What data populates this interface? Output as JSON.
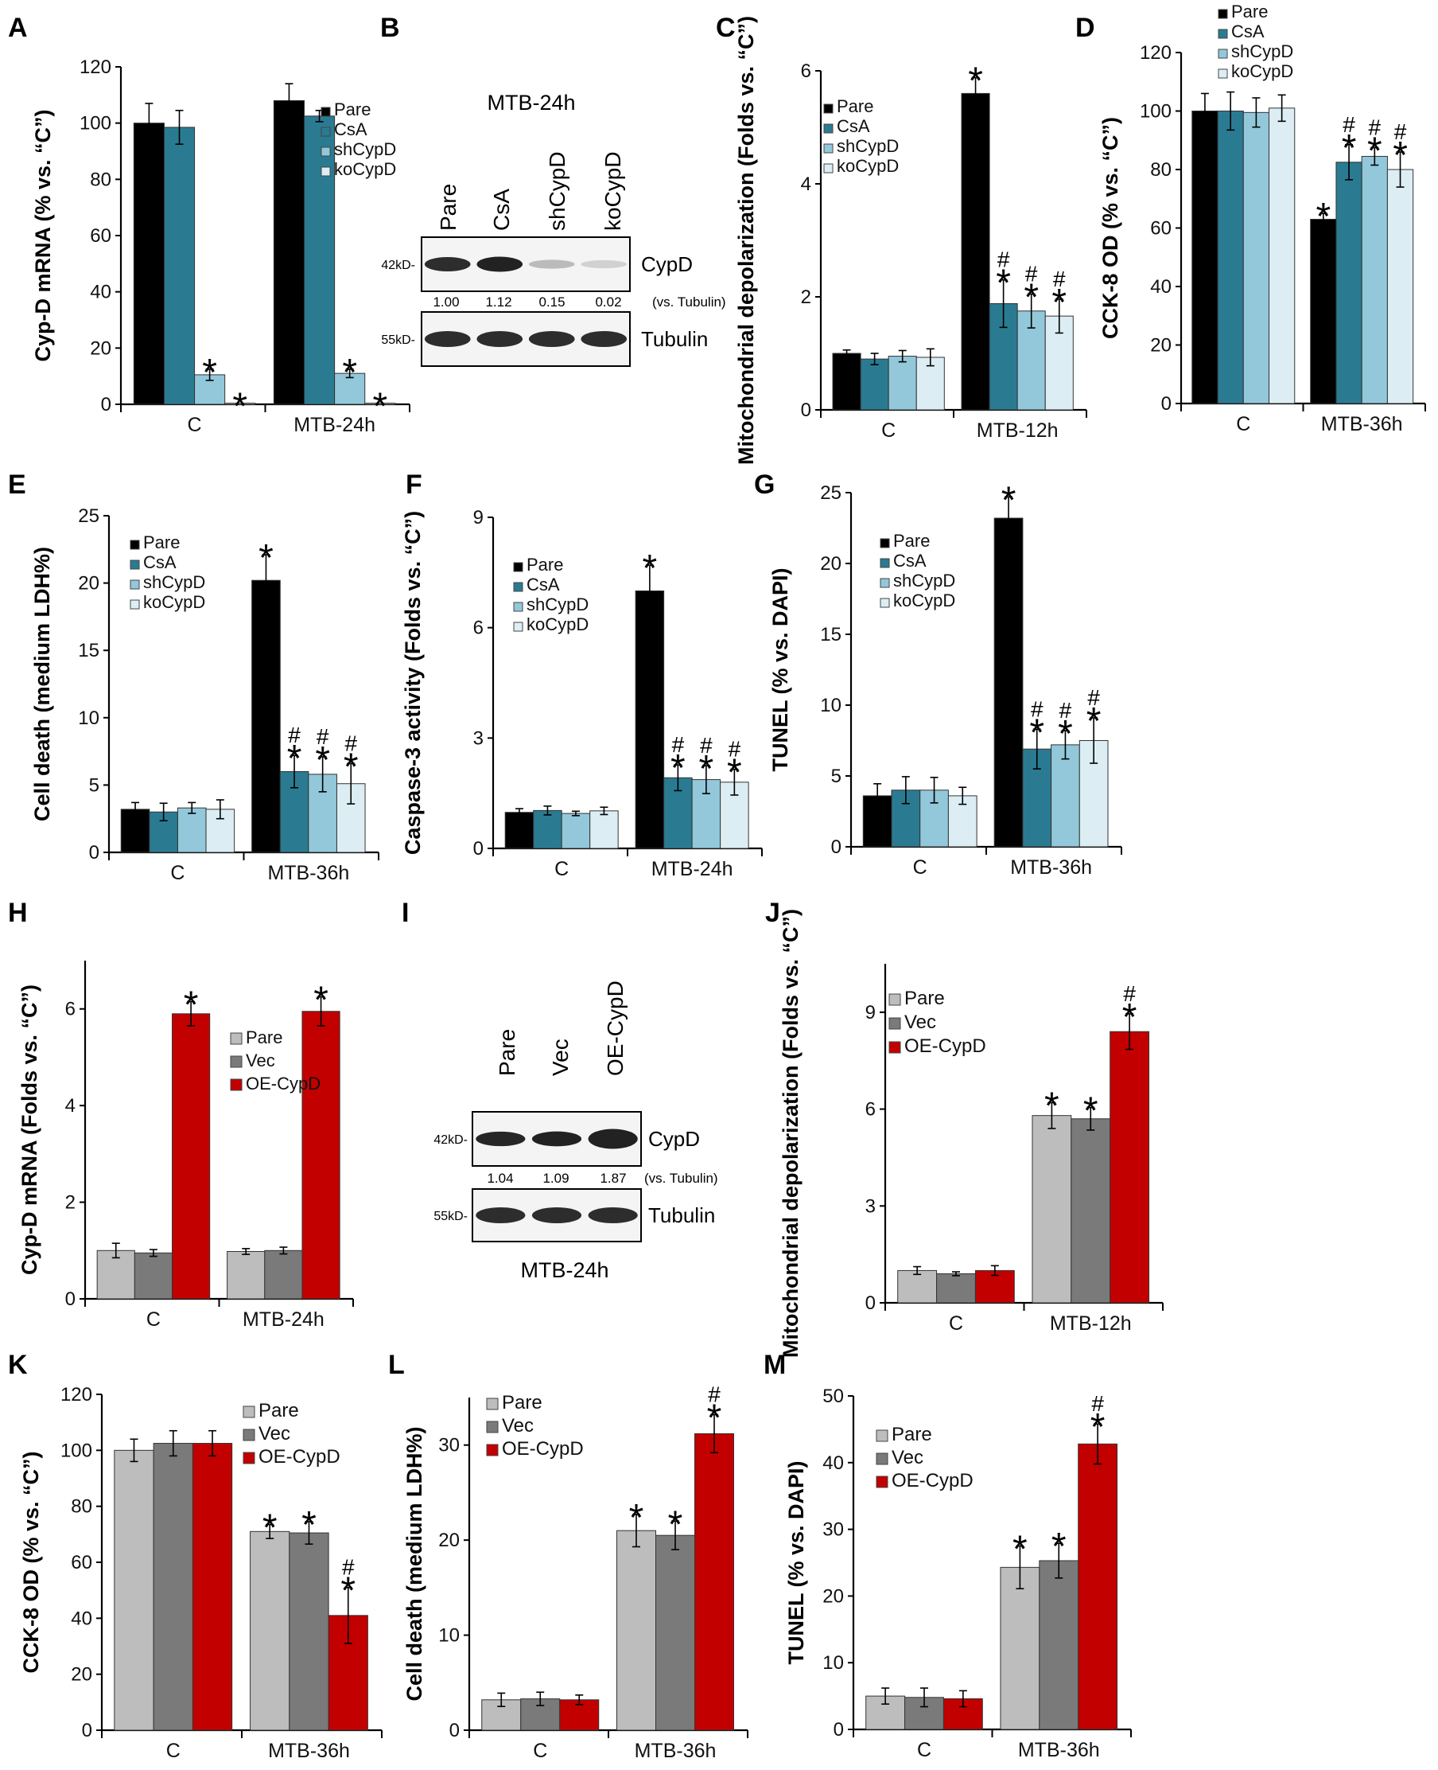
{
  "colors": {
    "pare_dark": "#000000",
    "csa": "#2a7b91",
    "shcypd": "#92c8da",
    "kocypd": "#dceef4",
    "pare_light": "#bdbdbd",
    "vec": "#7a7a7a",
    "oe_cypd": "#c20000"
  },
  "panels": [
    {
      "letter": "A"
    },
    {
      "letter": "B"
    },
    {
      "letter": "C"
    },
    {
      "letter": "D"
    },
    {
      "letter": "E"
    },
    {
      "letter": "F"
    },
    {
      "letter": "G"
    },
    {
      "letter": "H"
    },
    {
      "letter": "I"
    },
    {
      "letter": "J"
    },
    {
      "letter": "K"
    },
    {
      "letter": "L"
    },
    {
      "letter": "M"
    }
  ],
  "blots": [
    {
      "panel": "B",
      "title": "MTB-24h",
      "title_position": "top",
      "lanes": [
        "Pare",
        "CsA",
        "shCypD",
        "koCypD"
      ],
      "bands": [
        {
          "marker": "42kD-",
          "label": "CypD",
          "intensities": [
            1.0,
            1.12,
            0.15,
            0.02
          ]
        },
        {
          "marker": "55kD-",
          "label": "Tubulin",
          "intensities": [
            1.0,
            1.0,
            1.0,
            1.0
          ]
        }
      ],
      "quant": [
        "1.00",
        "1.12",
        "0.15",
        "0.02"
      ],
      "quant_suffix": "(vs. Tubulin)"
    },
    {
      "panel": "I",
      "title": "MTB-24h",
      "title_position": "bottom",
      "lanes": [
        "Pare",
        "Vec",
        "OE-CypD"
      ],
      "bands": [
        {
          "marker": "42kD-",
          "label": "CypD",
          "intensities": [
            1.04,
            1.09,
            1.87
          ]
        },
        {
          "marker": "55kD-",
          "label": "Tubulin",
          "intensities": [
            1.0,
            1.0,
            1.0
          ]
        }
      ],
      "quant": [
        "1.04",
        "1.09",
        "1.87"
      ],
      "quant_suffix": "(vs. Tubulin)"
    }
  ],
  "chart_data": [
    {
      "panel": "A",
      "type": "bar",
      "ylabel": "Cyp-D mRNA (% vs. “C”)",
      "ylim": [
        0,
        120
      ],
      "yticks": [
        0,
        20,
        40,
        60,
        80,
        100,
        120
      ],
      "categories": [
        "C",
        "MTB-24h"
      ],
      "legend_position": "top-right",
      "series": [
        {
          "name": "Pare",
          "color_key": "pare_dark",
          "values": [
            100,
            108
          ],
          "errors": [
            7,
            6
          ],
          "marks": [
            "",
            ""
          ]
        },
        {
          "name": "CsA",
          "color_key": "csa",
          "values": [
            98.5,
            102.5
          ],
          "errors": [
            6,
            2
          ],
          "marks": [
            "",
            ""
          ]
        },
        {
          "name": "shCypD",
          "color_key": "shcypd",
          "values": [
            10.5,
            11
          ],
          "errors": [
            2,
            1.5
          ],
          "marks": [
            "*",
            "*"
          ]
        },
        {
          "name": "koCypD",
          "color_key": "kocypd",
          "values": [
            0.4,
            0.4
          ],
          "errors": [
            0,
            0
          ],
          "marks": [
            "*",
            "*"
          ]
        }
      ]
    },
    {
      "panel": "C",
      "type": "bar",
      "ylabel": "Mitochondrial depolarization (Folds vs. “C”)",
      "ylim": [
        0,
        6
      ],
      "yticks": [
        0,
        2,
        4,
        6
      ],
      "categories": [
        "C",
        "MTB-12h"
      ],
      "legend_position": "top-left",
      "series": [
        {
          "name": "Pare",
          "color_key": "pare_dark",
          "values": [
            1.0,
            5.6
          ],
          "errors": [
            0.06,
            0.28
          ],
          "marks": [
            "",
            "*"
          ]
        },
        {
          "name": "CsA",
          "color_key": "csa",
          "values": [
            0.9,
            1.88
          ],
          "errors": [
            0.1,
            0.42
          ],
          "marks": [
            "",
            "*#"
          ]
        },
        {
          "name": "shCypD",
          "color_key": "shcypd",
          "values": [
            0.95,
            1.75
          ],
          "errors": [
            0.1,
            0.3
          ],
          "marks": [
            "",
            "*#"
          ]
        },
        {
          "name": "koCypD",
          "color_key": "kocypd",
          "values": [
            0.93,
            1.66
          ],
          "errors": [
            0.15,
            0.3
          ],
          "marks": [
            "",
            "*#"
          ]
        }
      ]
    },
    {
      "panel": "D",
      "type": "bar",
      "ylabel": "CCK-8 OD (% vs. “C”)",
      "ylim": [
        0,
        120
      ],
      "yticks": [
        0,
        20,
        40,
        60,
        80,
        100,
        120
      ],
      "categories": [
        "C",
        "MTB-36h"
      ],
      "legend_position": "top-left",
      "series": [
        {
          "name": "Pare",
          "color_key": "pare_dark",
          "values": [
            100,
            63
          ],
          "errors": [
            6,
            2
          ],
          "marks": [
            "",
            "*"
          ]
        },
        {
          "name": "CsA",
          "color_key": "csa",
          "values": [
            100,
            82.5
          ],
          "errors": [
            6.5,
            6
          ],
          "marks": [
            "",
            "*#"
          ]
        },
        {
          "name": "shCypD",
          "color_key": "shcypd",
          "values": [
            99.5,
            84.5
          ],
          "errors": [
            5,
            3
          ],
          "marks": [
            "",
            "*#"
          ]
        },
        {
          "name": "koCypD",
          "color_key": "kocypd",
          "values": [
            101,
            80
          ],
          "errors": [
            4.5,
            6
          ],
          "marks": [
            "",
            "*#"
          ]
        }
      ]
    },
    {
      "panel": "E",
      "type": "bar",
      "ylabel": "Cell death (medium LDH%)",
      "ylim": [
        0,
        25
      ],
      "yticks": [
        0,
        5,
        10,
        15,
        20,
        25
      ],
      "categories": [
        "C",
        "MTB-36h"
      ],
      "legend_position": "top-left",
      "series": [
        {
          "name": "Pare",
          "color_key": "pare_dark",
          "values": [
            3.2,
            20.2
          ],
          "errors": [
            0.5,
            1.9
          ],
          "marks": [
            "",
            "*"
          ]
        },
        {
          "name": "CsA",
          "color_key": "csa",
          "values": [
            3.0,
            6.0
          ],
          "errors": [
            0.65,
            1.2
          ],
          "marks": [
            "",
            "*#"
          ]
        },
        {
          "name": "shCypD",
          "color_key": "shcypd",
          "values": [
            3.3,
            5.8
          ],
          "errors": [
            0.4,
            1.3
          ],
          "marks": [
            "",
            "*#"
          ]
        },
        {
          "name": "koCypD",
          "color_key": "kocypd",
          "values": [
            3.2,
            5.1
          ],
          "errors": [
            0.7,
            1.5
          ],
          "marks": [
            "",
            "*#"
          ]
        }
      ]
    },
    {
      "panel": "F",
      "type": "bar",
      "ylabel": "Caspase-3 activity (Folds vs. “C”)",
      "ylim": [
        0,
        9
      ],
      "yticks": [
        0,
        3,
        6,
        9
      ],
      "categories": [
        "C",
        "MTB-24h"
      ],
      "legend_position": "top-left",
      "series": [
        {
          "name": "Pare",
          "color_key": "pare_dark",
          "values": [
            0.98,
            7.0
          ],
          "errors": [
            0.1,
            0.7
          ],
          "marks": [
            "",
            "*"
          ]
        },
        {
          "name": "CsA",
          "color_key": "csa",
          "values": [
            1.03,
            1.92
          ],
          "errors": [
            0.12,
            0.35
          ],
          "marks": [
            "",
            "*#"
          ]
        },
        {
          "name": "shCypD",
          "color_key": "shcypd",
          "values": [
            0.95,
            1.87
          ],
          "errors": [
            0.06,
            0.38
          ],
          "marks": [
            "",
            "*#"
          ]
        },
        {
          "name": "koCypD",
          "color_key": "kocypd",
          "values": [
            1.02,
            1.8
          ],
          "errors": [
            0.1,
            0.35
          ],
          "marks": [
            "",
            "*#"
          ]
        }
      ]
    },
    {
      "panel": "G",
      "type": "bar",
      "ylabel": "TUNEL (% vs. DAPI)",
      "ylim": [
        0,
        25
      ],
      "yticks": [
        0,
        5,
        10,
        15,
        20,
        25
      ],
      "categories": [
        "C",
        "MTB-36h"
      ],
      "legend_position": "top-left",
      "series": [
        {
          "name": "Pare",
          "color_key": "pare_dark",
          "values": [
            3.6,
            23.2
          ],
          "errors": [
            0.85,
            1.5
          ],
          "marks": [
            "",
            "*"
          ]
        },
        {
          "name": "CsA",
          "color_key": "csa",
          "values": [
            4.0,
            6.9
          ],
          "errors": [
            0.95,
            1.4
          ],
          "marks": [
            "",
            "*#"
          ]
        },
        {
          "name": "shCypD",
          "color_key": "shcypd",
          "values": [
            4.0,
            7.2
          ],
          "errors": [
            0.9,
            1.0
          ],
          "marks": [
            "",
            "*#"
          ]
        },
        {
          "name": "koCypD",
          "color_key": "kocypd",
          "values": [
            3.6,
            7.5
          ],
          "errors": [
            0.6,
            1.6
          ],
          "marks": [
            "",
            "*#"
          ]
        }
      ]
    },
    {
      "panel": "H",
      "type": "bar",
      "ylabel": "Cyp-D mRNA (Folds vs. “C”)",
      "ylim": [
        0,
        7
      ],
      "yticks": [
        0,
        2,
        4,
        6
      ],
      "categories": [
        "C",
        "MTB-24h"
      ],
      "legend_position": "center-right",
      "series": [
        {
          "name": "Pare",
          "color_key": "pare_light",
          "values": [
            1.0,
            0.98
          ],
          "errors": [
            0.15,
            0.06
          ],
          "marks": [
            "",
            ""
          ]
        },
        {
          "name": "Vec",
          "color_key": "vec",
          "values": [
            0.95,
            1.0
          ],
          "errors": [
            0.07,
            0.07
          ],
          "marks": [
            "",
            ""
          ]
        },
        {
          "name": "OE-CypD",
          "color_key": "oe_cypd",
          "values": [
            5.9,
            5.95
          ],
          "errors": [
            0.25,
            0.3
          ],
          "marks": [
            "*",
            "*"
          ]
        }
      ]
    },
    {
      "panel": "J",
      "type": "bar",
      "ylabel": "Mitochondrial depolarization (Folds vs. “C”)",
      "ylim": [
        0,
        10.5
      ],
      "yticks": [
        0,
        3,
        6,
        9
      ],
      "categories": [
        "C",
        "MTB-12h"
      ],
      "legend_position": "top-left",
      "series": [
        {
          "name": "Pare",
          "color_key": "pare_light",
          "values": [
            1.0,
            5.8
          ],
          "errors": [
            0.12,
            0.4
          ],
          "marks": [
            "",
            "*"
          ]
        },
        {
          "name": "Vec",
          "color_key": "vec",
          "values": [
            0.9,
            5.7
          ],
          "errors": [
            0.06,
            0.35
          ],
          "marks": [
            "",
            "*"
          ]
        },
        {
          "name": "OE-CypD",
          "color_key": "oe_cypd",
          "values": [
            1.0,
            8.4
          ],
          "errors": [
            0.15,
            0.55
          ],
          "marks": [
            "",
            "*#"
          ]
        }
      ]
    },
    {
      "panel": "K",
      "type": "bar",
      "ylabel": "CCK-8 OD (% vs. “C”)",
      "ylim": [
        0,
        120
      ],
      "yticks": [
        0,
        20,
        40,
        60,
        80,
        100,
        120
      ],
      "categories": [
        "C",
        "MTB-36h"
      ],
      "legend_position": "top-right",
      "series": [
        {
          "name": "Pare",
          "color_key": "pare_light",
          "values": [
            100,
            71
          ],
          "errors": [
            4,
            2.5
          ],
          "marks": [
            "",
            "*"
          ]
        },
        {
          "name": "Vec",
          "color_key": "vec",
          "values": [
            102.5,
            70.5
          ],
          "errors": [
            4.5,
            4
          ],
          "marks": [
            "",
            "*"
          ]
        },
        {
          "name": "OE-CypD",
          "color_key": "oe_cypd",
          "values": [
            102.5,
            41
          ],
          "errors": [
            4.5,
            10
          ],
          "marks": [
            "",
            "*#"
          ]
        }
      ]
    },
    {
      "panel": "L",
      "type": "bar",
      "ylabel": "Cell death (medium LDH%)",
      "ylim": [
        0,
        35
      ],
      "yticks": [
        0,
        10,
        20,
        30
      ],
      "categories": [
        "C",
        "MTB-36h"
      ],
      "legend_position": "top-left",
      "series": [
        {
          "name": "Pare",
          "color_key": "pare_light",
          "values": [
            3.2,
            21
          ],
          "errors": [
            0.7,
            1.7
          ],
          "marks": [
            "",
            "*"
          ]
        },
        {
          "name": "Vec",
          "color_key": "vec",
          "values": [
            3.3,
            20.5
          ],
          "errors": [
            0.7,
            1.5
          ],
          "marks": [
            "",
            "*"
          ]
        },
        {
          "name": "OE-CypD",
          "color_key": "oe_cypd",
          "values": [
            3.2,
            31.2
          ],
          "errors": [
            0.5,
            2
          ],
          "marks": [
            "",
            "*#"
          ]
        }
      ]
    },
    {
      "panel": "M",
      "type": "bar",
      "ylabel": "TUNEL (% vs. DAPI)",
      "ylim": [
        0,
        50
      ],
      "yticks": [
        0,
        10,
        20,
        30,
        40,
        50
      ],
      "categories": [
        "C",
        "MTB-36h"
      ],
      "legend_position": "top-left",
      "series": [
        {
          "name": "Pare",
          "color_key": "pare_light",
          "values": [
            5,
            24.3
          ],
          "errors": [
            1.2,
            3.2
          ],
          "marks": [
            "",
            "*"
          ]
        },
        {
          "name": "Vec",
          "color_key": "vec",
          "values": [
            4.8,
            25.3
          ],
          "errors": [
            1.4,
            2.6
          ],
          "marks": [
            "",
            "*"
          ]
        },
        {
          "name": "OE-CypD",
          "color_key": "oe_cypd",
          "values": [
            4.6,
            42.8
          ],
          "errors": [
            1.2,
            3
          ]
        }
      ]
    }
  ]
}
